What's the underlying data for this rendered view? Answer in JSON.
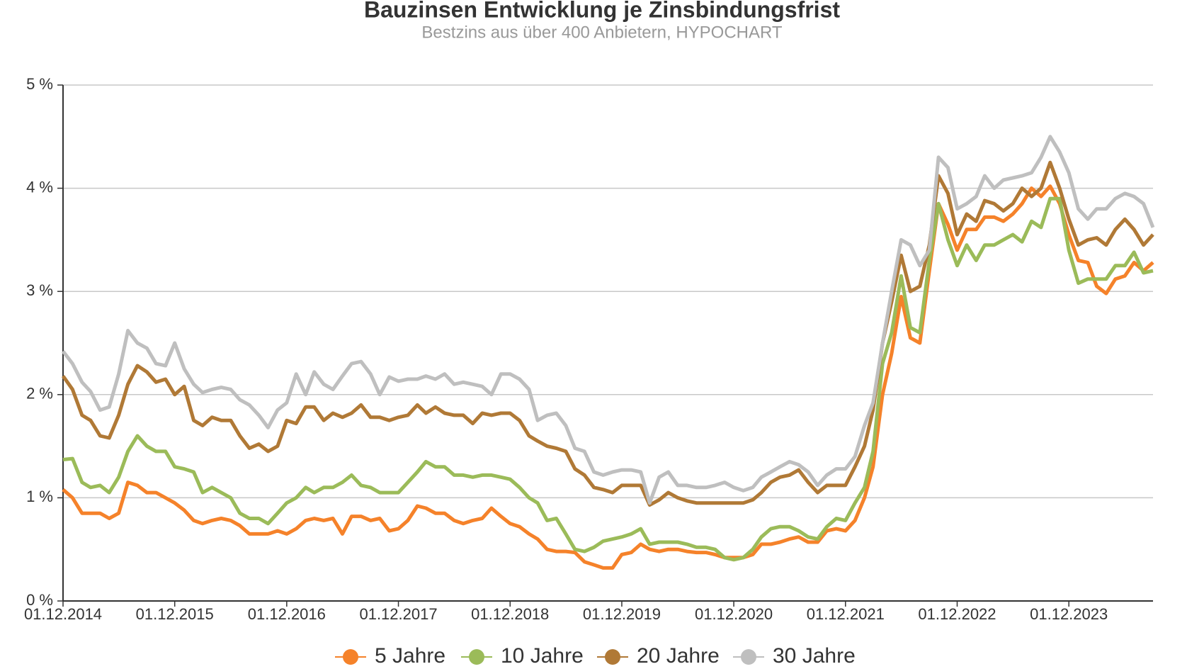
{
  "chart_data": {
    "type": "line",
    "title": "Bauzinsen Entwicklung je Zinsbindungsfrist",
    "subtitle": "Bestzins aus über 400 Anbietern, HYPOCHART",
    "x": [
      "2014-12-01",
      "2015-01-01",
      "2015-02-01",
      "2015-03-01",
      "2015-04-01",
      "2015-05-01",
      "2015-06-01",
      "2015-07-01",
      "2015-08-01",
      "2015-09-01",
      "2015-10-01",
      "2015-11-01",
      "2015-12-01",
      "2016-01-01",
      "2016-02-01",
      "2016-03-01",
      "2016-04-01",
      "2016-05-01",
      "2016-06-01",
      "2016-07-01",
      "2016-08-01",
      "2016-09-01",
      "2016-10-01",
      "2016-11-01",
      "2016-12-01",
      "2017-01-01",
      "2017-02-01",
      "2017-03-01",
      "2017-04-01",
      "2017-05-01",
      "2017-06-01",
      "2017-07-01",
      "2017-08-01",
      "2017-09-01",
      "2017-10-01",
      "2017-11-01",
      "2017-12-01",
      "2018-01-01",
      "2018-02-01",
      "2018-03-01",
      "2018-04-01",
      "2018-05-01",
      "2018-06-01",
      "2018-07-01",
      "2018-08-01",
      "2018-09-01",
      "2018-10-01",
      "2018-11-01",
      "2018-12-01",
      "2019-01-01",
      "2019-02-01",
      "2019-03-01",
      "2019-04-01",
      "2019-05-01",
      "2019-06-01",
      "2019-07-01",
      "2019-08-01",
      "2019-09-01",
      "2019-10-01",
      "2019-11-01",
      "2019-12-01",
      "2020-01-01",
      "2020-02-01",
      "2020-03-01",
      "2020-04-01",
      "2020-05-01",
      "2020-06-01",
      "2020-07-01",
      "2020-08-01",
      "2020-09-01",
      "2020-10-01",
      "2020-11-01",
      "2020-12-01",
      "2021-01-01",
      "2021-02-01",
      "2021-03-01",
      "2021-04-01",
      "2021-05-01",
      "2021-06-01",
      "2021-07-01",
      "2021-08-01",
      "2021-09-01",
      "2021-10-01",
      "2021-11-01",
      "2021-12-01",
      "2022-01-01",
      "2022-02-01",
      "2022-03-01",
      "2022-04-01",
      "2022-05-01",
      "2022-06-01",
      "2022-07-01",
      "2022-08-01",
      "2022-09-01",
      "2022-10-01",
      "2022-11-01",
      "2022-12-01",
      "2023-01-01",
      "2023-02-01",
      "2023-03-01",
      "2023-04-01",
      "2023-05-01",
      "2023-06-01",
      "2023-07-01",
      "2023-08-01",
      "2023-09-01",
      "2023-10-01",
      "2023-11-01",
      "2023-12-01",
      "2024-01-01",
      "2024-02-01",
      "2024-03-01",
      "2024-04-01",
      "2024-05-01",
      "2024-06-01",
      "2024-07-01",
      "2024-08-01",
      "2024-09-01"
    ],
    "series": [
      {
        "name": "5 Jahre",
        "color": "#f5822a",
        "values": [
          1.08,
          1.0,
          0.85,
          0.85,
          0.85,
          0.8,
          0.85,
          1.15,
          1.12,
          1.05,
          1.05,
          1.0,
          0.95,
          0.88,
          0.78,
          0.75,
          0.78,
          0.8,
          0.78,
          0.73,
          0.65,
          0.65,
          0.65,
          0.68,
          0.65,
          0.7,
          0.78,
          0.8,
          0.78,
          0.8,
          0.65,
          0.82,
          0.82,
          0.78,
          0.8,
          0.68,
          0.7,
          0.78,
          0.92,
          0.9,
          0.85,
          0.85,
          0.78,
          0.75,
          0.78,
          0.8,
          0.9,
          0.82,
          0.75,
          0.72,
          0.65,
          0.6,
          0.5,
          0.48,
          0.48,
          0.47,
          0.38,
          0.35,
          0.32,
          0.32,
          0.45,
          0.47,
          0.55,
          0.5,
          0.48,
          0.5,
          0.5,
          0.48,
          0.47,
          0.47,
          0.45,
          0.42,
          0.42,
          0.42,
          0.45,
          0.55,
          0.55,
          0.57,
          0.6,
          0.62,
          0.57,
          0.57,
          0.68,
          0.7,
          0.68,
          0.78,
          1.0,
          1.3,
          2.0,
          2.4,
          2.95,
          2.55,
          2.5,
          3.2,
          3.85,
          3.65,
          3.4,
          3.6,
          3.6,
          3.72,
          3.72,
          3.68,
          3.75,
          3.85,
          4.0,
          3.92,
          4.02,
          3.85,
          3.55,
          3.3,
          3.28,
          3.05,
          2.98,
          3.12,
          3.15,
          3.28,
          3.2,
          3.28
        ]
      },
      {
        "name": "10 Jahre",
        "color": "#9bbb59",
        "values": [
          1.37,
          1.38,
          1.15,
          1.1,
          1.12,
          1.05,
          1.2,
          1.45,
          1.6,
          1.5,
          1.45,
          1.45,
          1.3,
          1.28,
          1.25,
          1.05,
          1.1,
          1.05,
          1.0,
          0.85,
          0.8,
          0.8,
          0.75,
          0.85,
          0.95,
          1.0,
          1.1,
          1.05,
          1.1,
          1.1,
          1.15,
          1.22,
          1.12,
          1.1,
          1.05,
          1.05,
          1.05,
          1.15,
          1.25,
          1.35,
          1.3,
          1.3,
          1.22,
          1.22,
          1.2,
          1.22,
          1.22,
          1.2,
          1.18,
          1.1,
          1.0,
          0.95,
          0.78,
          0.8,
          0.65,
          0.5,
          0.48,
          0.52,
          0.58,
          0.6,
          0.62,
          0.65,
          0.7,
          0.55,
          0.57,
          0.57,
          0.57,
          0.55,
          0.52,
          0.52,
          0.5,
          0.42,
          0.4,
          0.42,
          0.5,
          0.62,
          0.7,
          0.72,
          0.72,
          0.68,
          0.62,
          0.6,
          0.72,
          0.8,
          0.78,
          0.95,
          1.1,
          1.45,
          2.3,
          2.6,
          3.15,
          2.65,
          2.6,
          3.3,
          3.85,
          3.5,
          3.25,
          3.45,
          3.3,
          3.45,
          3.45,
          3.5,
          3.55,
          3.48,
          3.68,
          3.62,
          3.9,
          3.9,
          3.4,
          3.08,
          3.12,
          3.12,
          3.12,
          3.25,
          3.25,
          3.38,
          3.18,
          3.2
        ]
      },
      {
        "name": "20 Jahre",
        "color": "#b07936",
        "values": [
          2.18,
          2.05,
          1.8,
          1.75,
          1.6,
          1.58,
          1.8,
          2.1,
          2.28,
          2.22,
          2.12,
          2.15,
          2.0,
          2.08,
          1.75,
          1.7,
          1.78,
          1.75,
          1.75,
          1.6,
          1.48,
          1.52,
          1.45,
          1.5,
          1.75,
          1.72,
          1.88,
          1.88,
          1.75,
          1.82,
          1.78,
          1.82,
          1.9,
          1.78,
          1.78,
          1.75,
          1.78,
          1.8,
          1.9,
          1.82,
          1.88,
          1.82,
          1.8,
          1.8,
          1.72,
          1.82,
          1.8,
          1.82,
          1.82,
          1.75,
          1.6,
          1.55,
          1.5,
          1.48,
          1.45,
          1.28,
          1.22,
          1.1,
          1.08,
          1.05,
          1.12,
          1.12,
          1.12,
          0.93,
          0.98,
          1.05,
          1.0,
          0.97,
          0.95,
          0.95,
          0.95,
          0.95,
          0.95,
          0.95,
          0.98,
          1.05,
          1.15,
          1.2,
          1.22,
          1.27,
          1.15,
          1.05,
          1.12,
          1.12,
          1.12,
          1.3,
          1.5,
          1.85,
          2.5,
          2.9,
          3.35,
          3.0,
          3.05,
          3.45,
          4.12,
          3.95,
          3.55,
          3.75,
          3.68,
          3.88,
          3.85,
          3.78,
          3.85,
          4.0,
          3.92,
          4.0,
          4.25,
          4.0,
          3.7,
          3.45,
          3.5,
          3.52,
          3.45,
          3.6,
          3.7,
          3.6,
          3.45,
          3.55
        ]
      },
      {
        "name": "30 Jahre",
        "color": "#bfbfbf",
        "values": [
          2.42,
          2.3,
          2.12,
          2.03,
          1.85,
          1.88,
          2.2,
          2.62,
          2.5,
          2.45,
          2.3,
          2.28,
          2.5,
          2.25,
          2.1,
          2.02,
          2.05,
          2.07,
          2.05,
          1.95,
          1.9,
          1.8,
          1.68,
          1.85,
          1.92,
          2.2,
          2.0,
          2.22,
          2.1,
          2.05,
          2.18,
          2.3,
          2.32,
          2.2,
          2.0,
          2.17,
          2.13,
          2.15,
          2.15,
          2.18,
          2.15,
          2.2,
          2.1,
          2.12,
          2.1,
          2.08,
          2.0,
          2.2,
          2.2,
          2.15,
          2.05,
          1.75,
          1.8,
          1.82,
          1.7,
          1.48,
          1.45,
          1.25,
          1.22,
          1.25,
          1.27,
          1.27,
          1.25,
          0.95,
          1.2,
          1.25,
          1.12,
          1.12,
          1.1,
          1.1,
          1.12,
          1.15,
          1.1,
          1.07,
          1.1,
          1.2,
          1.25,
          1.3,
          1.35,
          1.32,
          1.25,
          1.12,
          1.22,
          1.28,
          1.28,
          1.4,
          1.7,
          1.92,
          2.5,
          3.0,
          3.5,
          3.45,
          3.25,
          3.4,
          4.3,
          4.2,
          3.8,
          3.85,
          3.92,
          4.12,
          4.0,
          4.08,
          4.1,
          4.12,
          4.15,
          4.3,
          4.5,
          4.35,
          4.15,
          3.8,
          3.7,
          3.8,
          3.8,
          3.9,
          3.95,
          3.92,
          3.85,
          3.62
        ]
      }
    ],
    "xlim": [
      "2014-12-01",
      "2024-09-01"
    ],
    "xticks": [
      {
        "value": "2014-12-01",
        "label": "01.12.2014"
      },
      {
        "value": "2015-12-01",
        "label": "01.12.2015"
      },
      {
        "value": "2016-12-01",
        "label": "01.12.2016"
      },
      {
        "value": "2017-12-01",
        "label": "01.12.2017"
      },
      {
        "value": "2018-12-01",
        "label": "01.12.2018"
      },
      {
        "value": "2019-12-01",
        "label": "01.12.2019"
      },
      {
        "value": "2020-12-01",
        "label": "01.12.2020"
      },
      {
        "value": "2021-12-01",
        "label": "01.12.2021"
      },
      {
        "value": "2022-12-01",
        "label": "01.12.2022"
      },
      {
        "value": "2023-12-01",
        "label": "01.12.2023"
      }
    ],
    "ylim": [
      0,
      5
    ],
    "yticks": [
      {
        "value": 0,
        "label": "0 %"
      },
      {
        "value": 1,
        "label": "1 %"
      },
      {
        "value": 2,
        "label": "2 %"
      },
      {
        "value": 3,
        "label": "3 %"
      },
      {
        "value": 4,
        "label": "4 %"
      },
      {
        "value": 5,
        "label": "5 %"
      }
    ],
    "grid": true,
    "legend": "bottom"
  }
}
